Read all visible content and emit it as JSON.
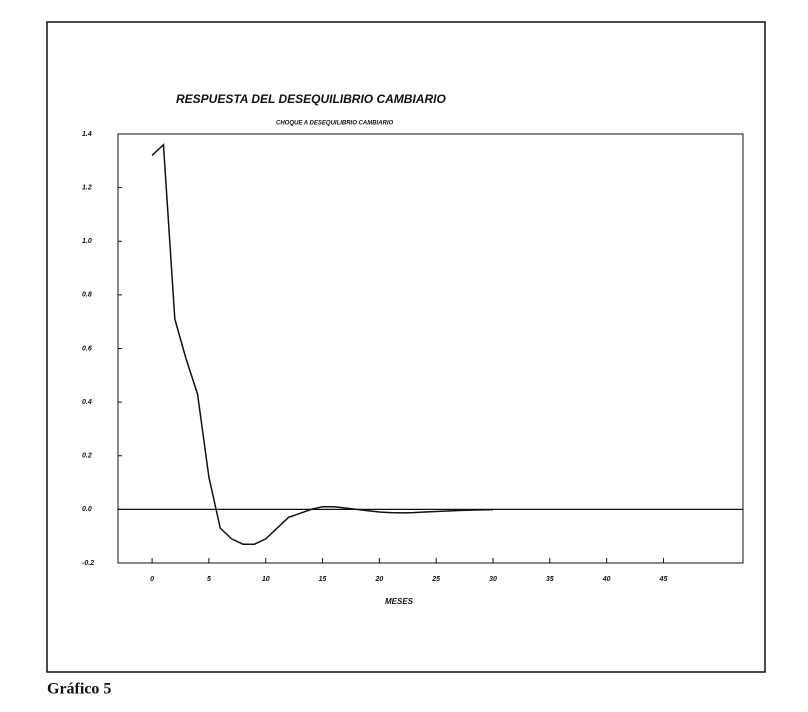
{
  "chart_data": {
    "type": "line",
    "title": "RESPUESTA DEL DESEQUILIBRIO CAMBIARIO",
    "subtitle": "CHOQUE A DESEQUILIBRIO CAMBIARIO",
    "x_label": "MESES",
    "x": [
      0,
      1,
      2,
      3,
      4,
      5,
      6,
      7,
      8,
      9,
      10,
      11,
      12,
      13,
      14,
      15,
      16,
      17,
      18,
      19,
      20,
      21,
      22,
      23,
      24,
      25,
      26,
      27,
      28,
      29,
      30
    ],
    "series": [
      {
        "color": "#111111",
        "values": [
          1.32,
          1.36,
          0.71,
          0.56,
          0.43,
          0.12,
          -0.07,
          -0.11,
          -0.13,
          -0.13,
          -0.11,
          -0.07,
          -0.03,
          -0.015,
          0,
          0.01,
          0.01,
          0.005,
          0,
          -0.005,
          -0.01,
          -0.012,
          -0.013,
          -0.012,
          -0.01,
          -0.008,
          -0.006,
          -0.004,
          -0.003,
          -0.002,
          -0.001
        ]
      }
    ],
    "xlim": [
      -3,
      52
    ],
    "xticks": [
      0,
      5,
      10,
      15,
      20,
      25,
      30,
      35,
      40,
      45
    ],
    "ylim": [
      -0.2,
      1.4
    ],
    "yticks": [
      1.4,
      1.2,
      {
        "value": 1,
        "label": "1.0"
      },
      0.8,
      0.6,
      0.4,
      0.2,
      {
        "value": 0,
        "label": "0.0"
      },
      -0.2
    ],
    "zero_line": true
  },
  "caption": "Gráfico 5"
}
